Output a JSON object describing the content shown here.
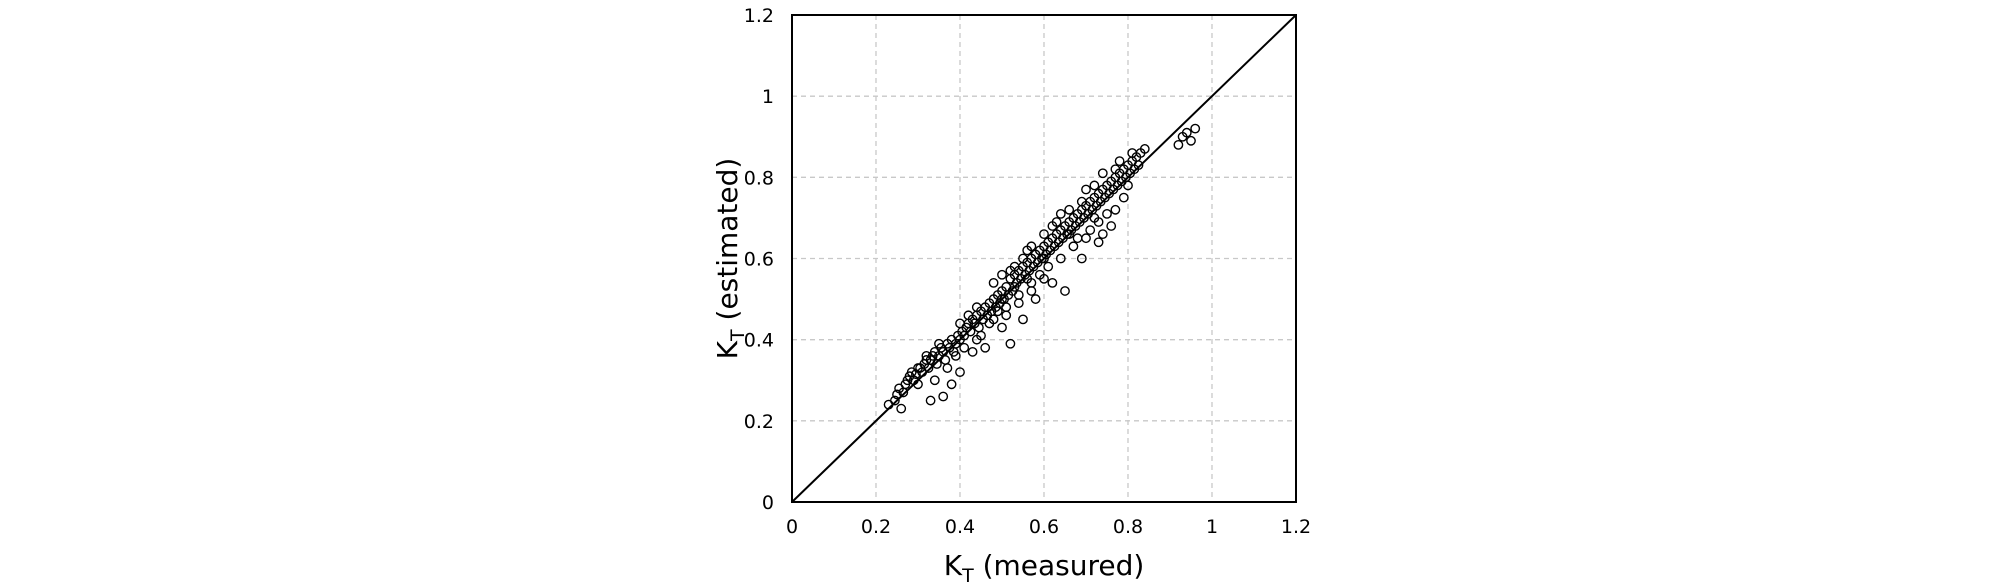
{
  "chart_data": {
    "type": "scatter",
    "title": "",
    "xlabel": {
      "main": "K",
      "sub": "T",
      "rest": " (measured)"
    },
    "ylabel": {
      "main": "K",
      "sub": "T",
      "rest": " (estimated)"
    },
    "xlim": [
      0,
      1.2
    ],
    "ylim": [
      0,
      1.2
    ],
    "x_ticks": [
      0,
      0.2,
      0.4,
      0.6,
      0.8,
      1,
      1.2
    ],
    "y_ticks": [
      0,
      0.2,
      0.4,
      0.6,
      0.8,
      1,
      1.2
    ],
    "x_tick_labels": [
      "0",
      "0.2",
      "0.4",
      "0.6",
      "0.8",
      "1",
      "1.2"
    ],
    "y_tick_labels": [
      "0",
      "0.2",
      "0.4",
      "0.6",
      "0.8",
      "1",
      "1.2"
    ],
    "grid": true,
    "grid_style": "dashed",
    "marker": "open-circle",
    "reference_line": {
      "type": "identity",
      "label": "1:1 line"
    },
    "series": [
      {
        "points": [
          [
            0.23,
            0.24
          ],
          [
            0.245,
            0.25
          ],
          [
            0.25,
            0.265
          ],
          [
            0.255,
            0.28
          ],
          [
            0.26,
            0.23
          ],
          [
            0.265,
            0.27
          ],
          [
            0.27,
            0.29
          ],
          [
            0.275,
            0.3
          ],
          [
            0.28,
            0.31
          ],
          [
            0.285,
            0.32
          ],
          [
            0.29,
            0.3
          ],
          [
            0.295,
            0.315
          ],
          [
            0.3,
            0.29
          ],
          [
            0.305,
            0.33
          ],
          [
            0.31,
            0.32
          ],
          [
            0.315,
            0.34
          ],
          [
            0.32,
            0.35
          ],
          [
            0.325,
            0.33
          ],
          [
            0.33,
            0.35
          ],
          [
            0.335,
            0.36
          ],
          [
            0.34,
            0.37
          ],
          [
            0.345,
            0.34
          ],
          [
            0.35,
            0.36
          ],
          [
            0.355,
            0.38
          ],
          [
            0.36,
            0.37
          ],
          [
            0.365,
            0.35
          ],
          [
            0.37,
            0.39
          ],
          [
            0.375,
            0.38
          ],
          [
            0.38,
            0.4
          ],
          [
            0.385,
            0.37
          ],
          [
            0.39,
            0.39
          ],
          [
            0.395,
            0.41
          ],
          [
            0.4,
            0.4
          ],
          [
            0.405,
            0.42
          ],
          [
            0.41,
            0.41
          ],
          [
            0.415,
            0.43
          ],
          [
            0.42,
            0.44
          ],
          [
            0.425,
            0.42
          ],
          [
            0.43,
            0.45
          ],
          [
            0.435,
            0.44
          ],
          [
            0.44,
            0.46
          ],
          [
            0.445,
            0.43
          ],
          [
            0.45,
            0.47
          ],
          [
            0.455,
            0.45
          ],
          [
            0.46,
            0.48
          ],
          [
            0.465,
            0.46
          ],
          [
            0.47,
            0.49
          ],
          [
            0.475,
            0.47
          ],
          [
            0.48,
            0.5
          ],
          [
            0.485,
            0.48
          ],
          [
            0.49,
            0.51
          ],
          [
            0.495,
            0.49
          ],
          [
            0.5,
            0.52
          ],
          [
            0.505,
            0.5
          ],
          [
            0.51,
            0.53
          ],
          [
            0.515,
            0.51
          ],
          [
            0.52,
            0.55
          ],
          [
            0.525,
            0.52
          ],
          [
            0.53,
            0.56
          ],
          [
            0.535,
            0.54
          ],
          [
            0.54,
            0.57
          ],
          [
            0.545,
            0.55
          ],
          [
            0.55,
            0.58
          ],
          [
            0.555,
            0.56
          ],
          [
            0.56,
            0.59
          ],
          [
            0.565,
            0.57
          ],
          [
            0.57,
            0.6
          ],
          [
            0.575,
            0.58
          ],
          [
            0.58,
            0.61
          ],
          [
            0.585,
            0.59
          ],
          [
            0.59,
            0.62
          ],
          [
            0.595,
            0.6
          ],
          [
            0.6,
            0.63
          ],
          [
            0.605,
            0.61
          ],
          [
            0.61,
            0.64
          ],
          [
            0.615,
            0.62
          ],
          [
            0.62,
            0.65
          ],
          [
            0.625,
            0.63
          ],
          [
            0.63,
            0.66
          ],
          [
            0.635,
            0.64
          ],
          [
            0.64,
            0.67
          ],
          [
            0.645,
            0.65
          ],
          [
            0.65,
            0.68
          ],
          [
            0.655,
            0.66
          ],
          [
            0.66,
            0.69
          ],
          [
            0.665,
            0.67
          ],
          [
            0.67,
            0.7
          ],
          [
            0.675,
            0.68
          ],
          [
            0.68,
            0.71
          ],
          [
            0.685,
            0.69
          ],
          [
            0.69,
            0.72
          ],
          [
            0.695,
            0.7
          ],
          [
            0.7,
            0.73
          ],
          [
            0.705,
            0.71
          ],
          [
            0.71,
            0.74
          ],
          [
            0.715,
            0.72
          ],
          [
            0.72,
            0.75
          ],
          [
            0.725,
            0.73
          ],
          [
            0.73,
            0.76
          ],
          [
            0.735,
            0.74
          ],
          [
            0.74,
            0.77
          ],
          [
            0.745,
            0.75
          ],
          [
            0.75,
            0.78
          ],
          [
            0.755,
            0.76
          ],
          [
            0.76,
            0.79
          ],
          [
            0.765,
            0.77
          ],
          [
            0.77,
            0.8
          ],
          [
            0.775,
            0.78
          ],
          [
            0.78,
            0.81
          ],
          [
            0.785,
            0.79
          ],
          [
            0.79,
            0.82
          ],
          [
            0.795,
            0.8
          ],
          [
            0.8,
            0.83
          ],
          [
            0.805,
            0.81
          ],
          [
            0.81,
            0.84
          ],
          [
            0.815,
            0.82
          ],
          [
            0.82,
            0.85
          ],
          [
            0.825,
            0.83
          ],
          [
            0.83,
            0.86
          ],
          [
            0.84,
            0.87
          ],
          [
            0.92,
            0.88
          ],
          [
            0.93,
            0.9
          ],
          [
            0.94,
            0.91
          ],
          [
            0.95,
            0.89
          ],
          [
            0.96,
            0.92
          ],
          [
            0.33,
            0.25
          ],
          [
            0.36,
            0.26
          ],
          [
            0.38,
            0.29
          ],
          [
            0.4,
            0.32
          ],
          [
            0.43,
            0.37
          ],
          [
            0.46,
            0.38
          ],
          [
            0.5,
            0.43
          ],
          [
            0.52,
            0.39
          ],
          [
            0.55,
            0.45
          ],
          [
            0.58,
            0.5
          ],
          [
            0.62,
            0.54
          ],
          [
            0.65,
            0.52
          ],
          [
            0.69,
            0.6
          ],
          [
            0.73,
            0.64
          ],
          [
            0.76,
            0.68
          ],
          [
            0.3,
            0.33
          ],
          [
            0.32,
            0.36
          ],
          [
            0.35,
            0.39
          ],
          [
            0.4,
            0.44
          ],
          [
            0.44,
            0.48
          ],
          [
            0.48,
            0.54
          ],
          [
            0.5,
            0.56
          ],
          [
            0.53,
            0.58
          ],
          [
            0.56,
            0.62
          ],
          [
            0.6,
            0.66
          ],
          [
            0.63,
            0.69
          ],
          [
            0.66,
            0.72
          ],
          [
            0.7,
            0.77
          ],
          [
            0.74,
            0.81
          ],
          [
            0.78,
            0.84
          ],
          [
            0.45,
            0.41
          ],
          [
            0.47,
            0.44
          ],
          [
            0.49,
            0.47
          ],
          [
            0.51,
            0.48
          ],
          [
            0.54,
            0.51
          ],
          [
            0.57,
            0.54
          ],
          [
            0.59,
            0.56
          ],
          [
            0.61,
            0.58
          ],
          [
            0.64,
            0.6
          ],
          [
            0.67,
            0.63
          ],
          [
            0.68,
            0.65
          ],
          [
            0.71,
            0.67
          ],
          [
            0.73,
            0.69
          ],
          [
            0.75,
            0.71
          ],
          [
            0.79,
            0.75
          ],
          [
            0.42,
            0.46
          ],
          [
            0.52,
            0.57
          ],
          [
            0.55,
            0.6
          ],
          [
            0.57,
            0.63
          ],
          [
            0.62,
            0.68
          ],
          [
            0.64,
            0.71
          ],
          [
            0.69,
            0.74
          ],
          [
            0.72,
            0.78
          ],
          [
            0.77,
            0.82
          ],
          [
            0.81,
            0.86
          ],
          [
            0.5,
            0.5
          ],
          [
            0.53,
            0.53
          ],
          [
            0.56,
            0.55
          ],
          [
            0.6,
            0.6
          ],
          [
            0.66,
            0.66
          ],
          [
            0.34,
            0.3
          ],
          [
            0.37,
            0.33
          ],
          [
            0.39,
            0.36
          ],
          [
            0.41,
            0.38
          ],
          [
            0.44,
            0.4
          ],
          [
            0.48,
            0.45
          ],
          [
            0.51,
            0.46
          ],
          [
            0.54,
            0.49
          ],
          [
            0.57,
            0.52
          ],
          [
            0.6,
            0.55
          ],
          [
            0.7,
            0.65
          ],
          [
            0.72,
            0.7
          ],
          [
            0.74,
            0.66
          ],
          [
            0.77,
            0.72
          ],
          [
            0.8,
            0.78
          ]
        ]
      }
    ]
  }
}
